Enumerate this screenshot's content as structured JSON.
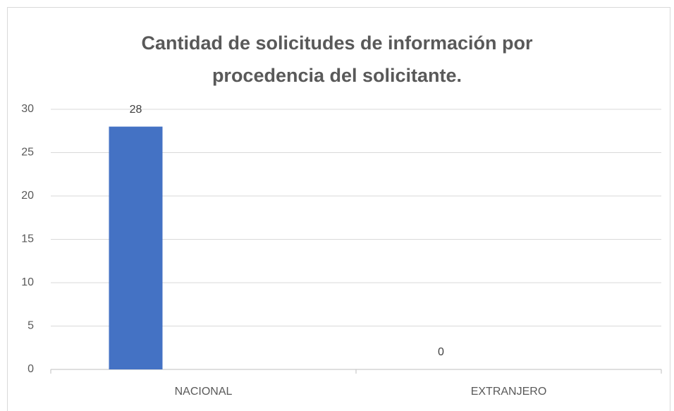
{
  "chart_data": {
    "type": "bar",
    "title": "Cantidad de solicitudes de información  por procedencia del solicitante.",
    "categories": [
      "NACIONAL",
      "EXTRANJERO"
    ],
    "values": [
      28,
      0
    ],
    "color": "#4472c4",
    "ylim": [
      0,
      30
    ],
    "yticks": [
      0,
      5,
      10,
      15,
      20,
      25,
      30
    ],
    "grid": true
  }
}
